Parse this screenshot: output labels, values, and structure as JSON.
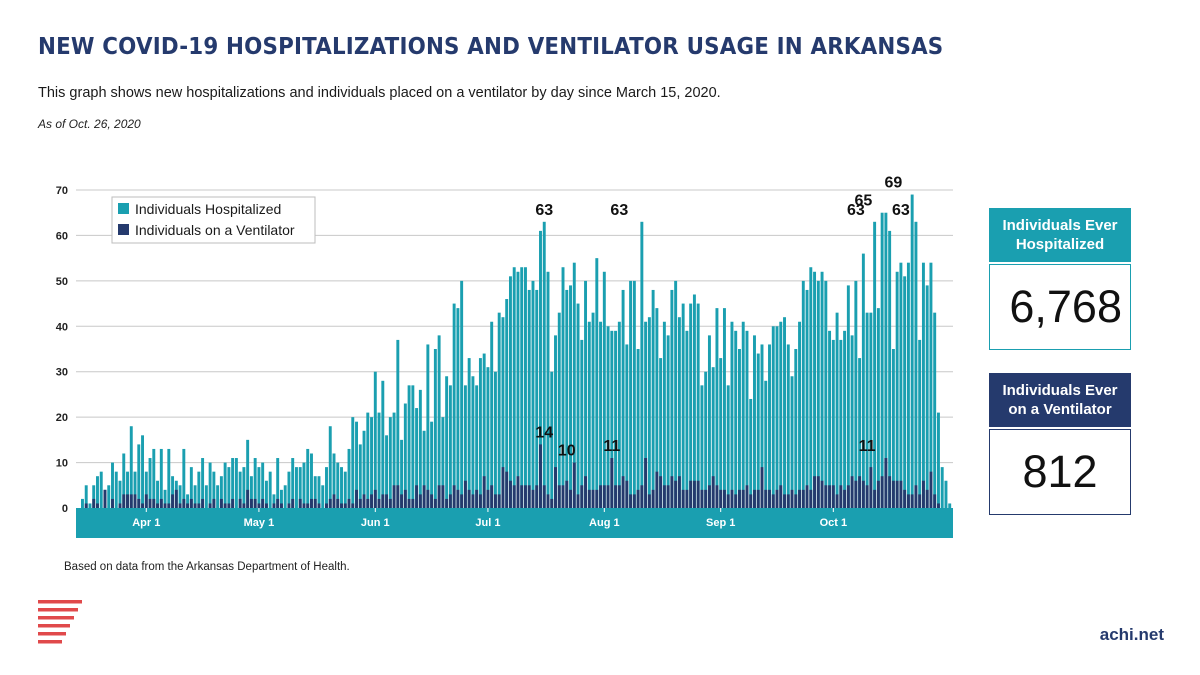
{
  "header": {
    "title": "NEW COVID-19 HOSPITALIZATIONS AND VENTILATOR USAGE IN ARKANSAS",
    "subtitle": "This graph shows new hospitalizations and individuals placed on a ventilator by day since March 15, 2020.",
    "as_of": "As of Oct. 26, 2020"
  },
  "chart_data": {
    "type": "bar",
    "title": "",
    "xlabel": "",
    "ylabel": "",
    "ylim": [
      0,
      70
    ],
    "y_ticks": [
      0,
      10,
      20,
      30,
      40,
      50,
      60,
      70
    ],
    "x_tick_labels": [
      {
        "label": "Apr 1",
        "date": "2020-04-01"
      },
      {
        "label": "May 1",
        "date": "2020-05-01"
      },
      {
        "label": "Jun 1",
        "date": "2020-06-01"
      },
      {
        "label": "Jul 1",
        "date": "2020-07-01"
      },
      {
        "label": "Aug 1",
        "date": "2020-08-01"
      },
      {
        "label": "Sep 1",
        "date": "2020-09-01"
      },
      {
        "label": "Oct 1",
        "date": "2020-10-01"
      }
    ],
    "date_range": [
      "2020-03-15",
      "2020-10-26"
    ],
    "grid": true,
    "legend_position": "top-left",
    "series": [
      {
        "name": "Individuals Hospitalized",
        "color": "#1a9fb0",
        "values": [
          2,
          5,
          1,
          5,
          7,
          8,
          4,
          5,
          10,
          8,
          6,
          12,
          8,
          18,
          8,
          14,
          16,
          8,
          11,
          13,
          6,
          13,
          4,
          13,
          7,
          6,
          5,
          13,
          3,
          9,
          5,
          8,
          11,
          5,
          10,
          8,
          5,
          7,
          10,
          9,
          11,
          11,
          8,
          9,
          15,
          7,
          11,
          9,
          10,
          6,
          8,
          3,
          11,
          4,
          5,
          8,
          11,
          9,
          9,
          10,
          13,
          12,
          7,
          7,
          5,
          9,
          18,
          12,
          10,
          9,
          8,
          13,
          20,
          19,
          14,
          17,
          21,
          20,
          30,
          21,
          28,
          16,
          20,
          21,
          37,
          15,
          23,
          27,
          27,
          22,
          26,
          17,
          36,
          19,
          35,
          38,
          20,
          29,
          27,
          45,
          44,
          50,
          27,
          33,
          29,
          27,
          33,
          34,
          31,
          41,
          30,
          43,
          42,
          46,
          51,
          53,
          52,
          53,
          53,
          48,
          50,
          48,
          61,
          63,
          52,
          30,
          38,
          43,
          53,
          48,
          49,
          54,
          45,
          37,
          50,
          41,
          43,
          55,
          41,
          52,
          40,
          39,
          39,
          41,
          48,
          36,
          50,
          50,
          35,
          63,
          41,
          42,
          48,
          44,
          33,
          41,
          38,
          48,
          50,
          42,
          45,
          39,
          45,
          47,
          45,
          27,
          30,
          38,
          31,
          44,
          33,
          44,
          27,
          41,
          39,
          35,
          41,
          39,
          24,
          38,
          34,
          36,
          28,
          36,
          40,
          40,
          41,
          42,
          36,
          29,
          35,
          41,
          50,
          48,
          53,
          52,
          50,
          52,
          50,
          39,
          37,
          43,
          37,
          39,
          49,
          38,
          50,
          33,
          56,
          43,
          43,
          63,
          44,
          65,
          65,
          61,
          35,
          52,
          54,
          51,
          54,
          69,
          63,
          37,
          54,
          49,
          54,
          43,
          21,
          9,
          6,
          1
        ],
        "annotations": [
          {
            "x": "2020-07-16",
            "y": 63,
            "label": "63"
          },
          {
            "x": "2020-08-05",
            "y": 63,
            "label": "63"
          },
          {
            "x": "2020-10-07",
            "y": 63,
            "label": "63"
          },
          {
            "x": "2020-10-09",
            "y": 65,
            "label": "65"
          },
          {
            "x": "2020-10-17",
            "y": 69,
            "label": "69"
          },
          {
            "x": "2020-10-19",
            "y": 63,
            "label": "63"
          }
        ]
      },
      {
        "name": "Individuals on a Ventilator",
        "color": "#253a6d",
        "values": [
          0,
          1,
          0,
          2,
          1,
          0,
          4,
          0,
          2,
          0,
          1,
          3,
          3,
          3,
          3,
          2,
          1,
          3,
          2,
          2,
          1,
          2,
          1,
          1,
          3,
          4,
          1,
          2,
          1,
          2,
          1,
          1,
          2,
          0,
          1,
          2,
          0,
          2,
          1,
          1,
          2,
          0,
          2,
          1,
          4,
          2,
          2,
          1,
          2,
          1,
          0,
          1,
          2,
          1,
          0,
          1,
          2,
          0,
          2,
          1,
          1,
          2,
          2,
          1,
          0,
          1,
          2,
          3,
          2,
          1,
          1,
          2,
          1,
          4,
          2,
          3,
          2,
          3,
          4,
          2,
          3,
          3,
          2,
          5,
          5,
          3,
          4,
          2,
          2,
          5,
          3,
          5,
          4,
          3,
          2,
          5,
          5,
          2,
          3,
          5,
          4,
          3,
          6,
          4,
          3,
          4,
          3,
          7,
          4,
          5,
          3,
          3,
          9,
          8,
          6,
          5,
          7,
          5,
          5,
          5,
          4,
          5,
          14,
          5,
          3,
          2,
          9,
          5,
          5,
          6,
          4,
          10,
          3,
          5,
          7,
          4,
          4,
          4,
          5,
          5,
          5,
          11,
          5,
          5,
          7,
          6,
          3,
          3,
          4,
          5,
          11,
          3,
          4,
          8,
          7,
          5,
          5,
          7,
          6,
          7,
          4,
          4,
          6,
          6,
          6,
          4,
          4,
          5,
          7,
          5,
          4,
          4,
          3,
          4,
          3,
          4,
          4,
          5,
          3,
          4,
          4,
          9,
          4,
          4,
          3,
          4,
          5,
          3,
          3,
          4,
          3,
          4,
          4,
          5,
          4,
          7,
          7,
          6,
          5,
          5,
          5,
          3,
          5,
          4,
          5,
          7,
          6,
          7,
          6,
          5,
          9,
          4,
          6,
          7,
          11,
          7,
          6,
          6,
          6,
          4,
          3,
          3,
          5,
          3,
          6,
          4,
          8,
          3,
          1,
          0,
          0,
          0
        ],
        "annotations": [
          {
            "x": "2020-07-16",
            "y": 14,
            "label": "14"
          },
          {
            "x": "2020-07-22",
            "y": 10,
            "label": "10"
          },
          {
            "x": "2020-08-03",
            "y": 11,
            "label": "11"
          },
          {
            "x": "2020-10-10",
            "y": 11,
            "label": "11"
          }
        ]
      }
    ]
  },
  "stats": {
    "hospitalized": {
      "label": "Individuals Ever Hospitalized",
      "value": "6,768"
    },
    "ventilator": {
      "label": "Individuals Ever on a Ventilator",
      "value": "812"
    }
  },
  "footer": {
    "source": "Based on data from the Arkansas Department of Health.",
    "brand": "achi.net"
  },
  "colors": {
    "title": "#253a6d",
    "teal": "#1a9fb0",
    "navy": "#253a6d",
    "logo_red": "#e0494b"
  }
}
